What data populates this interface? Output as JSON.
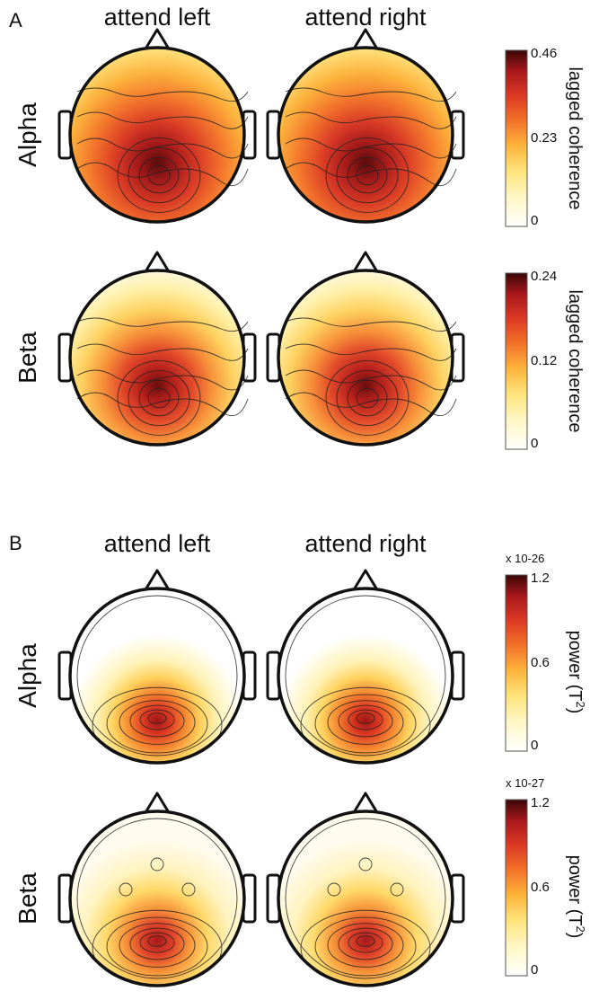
{
  "panels": [
    {
      "letter": "A",
      "col_labels": [
        "attend left",
        "attend right"
      ],
      "rows": [
        {
          "label": "Alpha",
          "colorbar": {
            "ticks": [
              "0.46",
              "0.23",
              "0"
            ],
            "label": "lagged coherence",
            "exponent": "",
            "unit_base": "",
            "unit_sup": "",
            "unit_close": ""
          }
        },
        {
          "label": "Beta",
          "colorbar": {
            "ticks": [
              "0.24",
              "0.12",
              "0"
            ],
            "label": "lagged coherence",
            "exponent": "",
            "unit_base": "",
            "unit_sup": "",
            "unit_close": ""
          }
        }
      ]
    },
    {
      "letter": "B",
      "col_labels": [
        "attend left",
        "attend right"
      ],
      "rows": [
        {
          "label": "Alpha",
          "colorbar": {
            "ticks": [
              "1.2",
              "0.6",
              "0"
            ],
            "label": "power (T",
            "exponent": "x 10-26",
            "unit_base": "power (T",
            "unit_sup": "2",
            "unit_close": ")"
          }
        },
        {
          "label": "Beta",
          "colorbar": {
            "ticks": [
              "1.2",
              "0.6",
              "0"
            ],
            "label": "power (T",
            "exponent": "x 10-27",
            "unit_base": "power (T",
            "unit_sup": "2",
            "unit_close": ")"
          }
        }
      ]
    }
  ],
  "chart_data": {
    "type": "heatmap",
    "description_units": "normalized intensity (0 = colorbar min, 1 = colorbar max), read approximately from topographic maps",
    "maps": [
      {
        "panel": "A",
        "band": "Alpha",
        "condition": "attend left",
        "peak_value": 0.43,
        "background_value": 0.08,
        "contour": true
      },
      {
        "panel": "A",
        "band": "Alpha",
        "condition": "attend right",
        "peak_value": 0.44,
        "background_value": 0.08,
        "contour": true
      },
      {
        "panel": "A",
        "band": "Beta",
        "condition": "attend left",
        "peak_value": 0.22,
        "background_value": 0.03,
        "contour": true
      },
      {
        "panel": "A",
        "band": "Beta",
        "condition": "attend right",
        "peak_value": 0.22,
        "background_value": 0.03,
        "contour": true
      },
      {
        "panel": "B",
        "band": "Alpha",
        "condition": "attend left",
        "peak_value": 0.9,
        "background_value": 0.02,
        "contour": true
      },
      {
        "panel": "B",
        "band": "Alpha",
        "condition": "attend right",
        "peak_value": 0.85,
        "background_value": 0.02,
        "contour": true
      },
      {
        "panel": "B",
        "band": "Beta",
        "condition": "attend left",
        "peak_value": 0.85,
        "background_value": 0.05,
        "contour": true
      },
      {
        "panel": "B",
        "band": "Beta",
        "condition": "attend right",
        "peak_value": 0.85,
        "background_value": 0.05,
        "contour": true
      }
    ],
    "colormap": [
      "#ffffff",
      "#fff6bf",
      "#ffe27a",
      "#fdb33a",
      "#f2722a",
      "#dc3a23",
      "#a8181b",
      "#4a0a0a"
    ]
  }
}
